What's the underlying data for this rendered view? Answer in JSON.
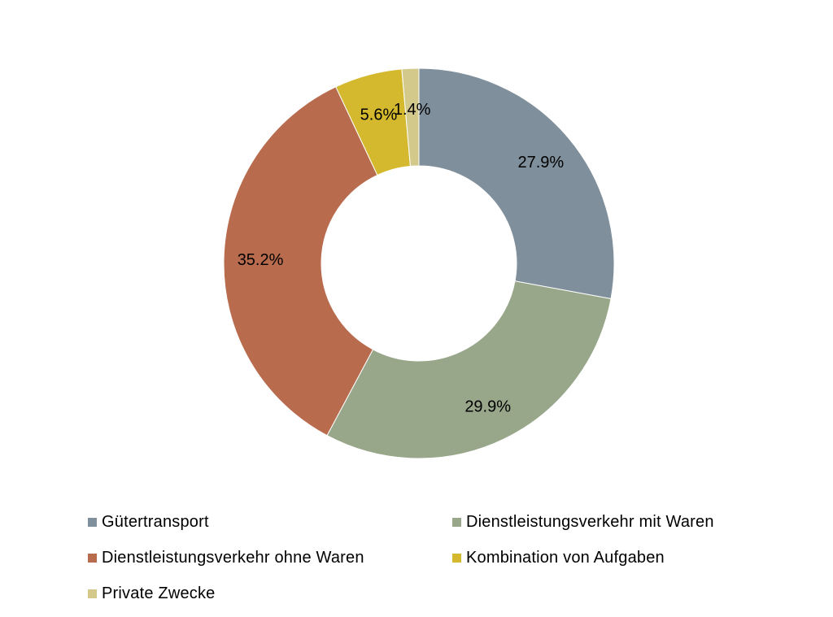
{
  "chart_data": {
    "type": "pie",
    "variant": "donut",
    "title": "",
    "legend_position": "bottom",
    "series": [
      {
        "name": "Gütertransport",
        "value": 27.9,
        "label": "27.9%",
        "color": "#7f8f9b"
      },
      {
        "name": "Dienstleistungsverkehr mit Waren",
        "value": 29.9,
        "label": "29.9%",
        "color": "#98a68a"
      },
      {
        "name": "Dienstleistungsverkehr ohne Waren",
        "value": 35.2,
        "label": "35.2%",
        "color": "#b86b4d"
      },
      {
        "name": "Kombination von Aufgaben",
        "value": 5.6,
        "label": "5.6%",
        "color": "#d4b92f"
      },
      {
        "name": "Private Zwecke",
        "value": 1.4,
        "label": "1.4%",
        "color": "#d2c98b"
      }
    ]
  },
  "legend": {
    "items": [
      {
        "label": "Gütertransport",
        "color": "#7f8f9b"
      },
      {
        "label": "Dienstleistungsverkehr mit Waren",
        "color": "#98a68a"
      },
      {
        "label": "Dienstleistungsverkehr ohne Waren",
        "color": "#b86b4d"
      },
      {
        "label": "Kombination von Aufgaben",
        "color": "#d4b92f"
      },
      {
        "label": "Private Zwecke",
        "color": "#d2c98b"
      }
    ]
  }
}
